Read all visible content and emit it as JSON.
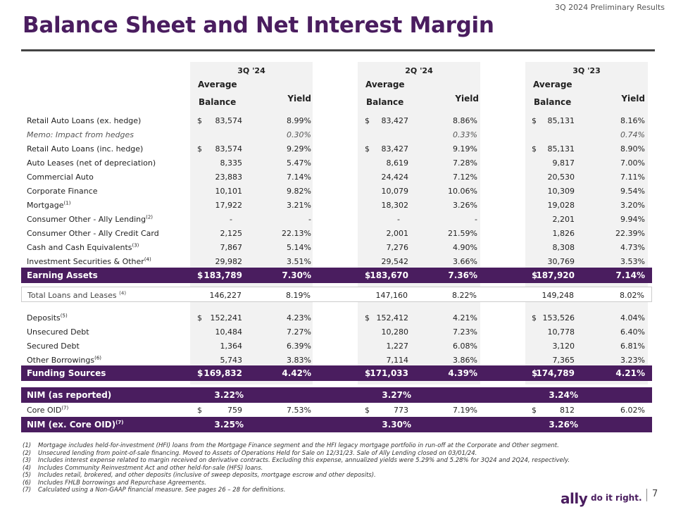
{
  "header": {
    "top_right": "3Q 2024 Preliminary Results",
    "title": "Balance Sheet and Net Interest Margin"
  },
  "periods": [
    "3Q '24",
    "2Q '24",
    "3Q '23"
  ],
  "col_headers": {
    "average": "Average",
    "balance": "Balance",
    "yield": "Yield"
  },
  "rows": {
    "retail_ex": {
      "label": "Retail Auto Loans (ex. hedge)",
      "sup": "",
      "vals": [
        "$",
        "83,574",
        "8.99%",
        "$",
        "83,427",
        "8.86%",
        "$",
        "85,131",
        "8.16%"
      ]
    },
    "memo": {
      "label": "Memo: Impact from hedges",
      "sup": "",
      "vals": [
        "",
        "",
        "0.30%",
        "",
        "",
        "0.33%",
        "",
        "",
        "0.74%"
      ]
    },
    "retail_inc": {
      "label": "Retail Auto Loans (inc. hedge)",
      "sup": "",
      "vals": [
        "$",
        "83,574",
        "9.29%",
        "$",
        "83,427",
        "9.19%",
        "$",
        "85,131",
        "8.90%"
      ]
    },
    "auto_leases": {
      "label": "Auto Leases (net of depreciation)",
      "sup": "",
      "vals": [
        "",
        "8,335",
        "5.47%",
        "",
        "8,619",
        "7.28%",
        "",
        "9,817",
        "7.00%"
      ]
    },
    "commercial_auto": {
      "label": "Commercial Auto",
      "sup": "",
      "vals": [
        "",
        "23,883",
        "7.14%",
        "",
        "24,424",
        "7.12%",
        "",
        "20,530",
        "7.11%"
      ]
    },
    "corporate_finance": {
      "label": "Corporate Finance",
      "sup": "",
      "vals": [
        "",
        "10,101",
        "9.82%",
        "",
        "10,079",
        "10.06%",
        "",
        "10,309",
        "9.54%"
      ]
    },
    "mortgage": {
      "label": "Mortgage",
      "sup": "(1)",
      "vals": [
        "",
        "17,922",
        "3.21%",
        "",
        "18,302",
        "3.26%",
        "",
        "19,028",
        "3.20%"
      ]
    },
    "consumer_lending": {
      "label": "Consumer Other - Ally Lending",
      "sup": "(2)",
      "vals": [
        "",
        "-",
        "-",
        "",
        "-",
        "-",
        "",
        "2,201",
        "9.94%"
      ]
    },
    "consumer_card": {
      "label": "Consumer Other - Ally Credit Card",
      "sup": "",
      "vals": [
        "",
        "2,125",
        "22.13%",
        "",
        "2,001",
        "21.59%",
        "",
        "1,826",
        "22.39%"
      ]
    },
    "cash": {
      "label": "Cash and Cash Equivalents",
      "sup": "(3)",
      "vals": [
        "",
        "7,867",
        "5.14%",
        "",
        "7,276",
        "4.90%",
        "",
        "8,308",
        "4.73%"
      ]
    },
    "investment": {
      "label": "Investment Securities & Other",
      "sup": "(4)",
      "vals": [
        "",
        "29,982",
        "3.51%",
        "",
        "29,542",
        "3.66%",
        "",
        "30,769",
        "3.53%"
      ]
    },
    "earning_assets": {
      "label": "Earning Assets",
      "sup": "",
      "vals": [
        "$",
        "183,789",
        "7.30%",
        "$",
        "183,670",
        "7.36%",
        "$",
        "187,920",
        "7.14%"
      ]
    },
    "total_loans": {
      "label": "Total Loans and Leases ",
      "sup": "(4)",
      "vals": [
        "",
        "146,227",
        "8.19%",
        "",
        "147,160",
        "8.22%",
        "",
        "149,248",
        "8.02%"
      ]
    },
    "deposits": {
      "label": "Deposits",
      "sup": "(5)",
      "vals": [
        "$",
        "152,241",
        "4.23%",
        "$",
        "152,412",
        "4.21%",
        "$",
        "153,526",
        "4.04%"
      ]
    },
    "unsecured": {
      "label": "Unsecured Debt",
      "sup": "",
      "vals": [
        "",
        "10,484",
        "7.27%",
        "",
        "10,280",
        "7.23%",
        "",
        "10,778",
        "6.40%"
      ]
    },
    "secured": {
      "label": "Secured Debt",
      "sup": "",
      "vals": [
        "",
        "1,364",
        "6.39%",
        "",
        "1,227",
        "6.08%",
        "",
        "3,120",
        "6.81%"
      ]
    },
    "other_borrowings": {
      "label": "Other Borrowings",
      "sup": "(6)",
      "vals": [
        "",
        "5,743",
        "3.83%",
        "",
        "7,114",
        "3.86%",
        "",
        "7,365",
        "3.23%"
      ]
    },
    "funding": {
      "label": "Funding Sources",
      "sup": "",
      "vals": [
        "$",
        "169,832",
        "4.42%",
        "$",
        "171,033",
        "4.39%",
        "$",
        "174,789",
        "4.21%"
      ]
    },
    "nim": {
      "label": "NIM (as reported)",
      "sup": "",
      "vals": [
        "3.22%",
        "3.27%",
        "3.24%"
      ]
    },
    "core_oid": {
      "label": "Core OID",
      "sup": "(7)",
      "vals": [
        "$",
        "759",
        "7.53%",
        "$",
        "773",
        "7.19%",
        "$",
        "812",
        "6.02%"
      ]
    },
    "nim_ex": {
      "label": "NIM (ex. Core OID)",
      "sup": "(7)",
      "vals": [
        "3.25%",
        "3.30%",
        "3.26%"
      ]
    }
  },
  "footnotes": [
    {
      "num": "(1)",
      "text": "Mortgage includes held-for-investment (HFI) loans from the Mortgage Finance segment and the HFI legacy mortgage portfolio in run-off at the Corporate and Other segment."
    },
    {
      "num": "(2)",
      "text": "Unsecured lending from point-of-sale financing. Moved to Assets of Operations Held for Sale on 12/31/23. Sale of Ally Lending closed on 03/01/24."
    },
    {
      "num": "(3)",
      "text": "Includes interest expense related to margin received on derivative contracts. Excluding this expense, annualized yields were 5.29% and 5.28% for 3Q24 and 2Q24, respectively."
    },
    {
      "num": "(4)",
      "text": "Includes Community Reinvestment Act and other held-for-sale (HFS) loans."
    },
    {
      "num": "(5)",
      "text": "Includes retail, brokered, and other deposits (inclusive of sweep deposits, mortgage escrow and other deposits)."
    },
    {
      "num": "(6)",
      "text": "Includes FHLB borrowings and Repurchase Agreements."
    },
    {
      "num": "(7)",
      "text": "Calculated using a Non-GAAP financial measure. See pages 26 – 28 for definitions."
    }
  ],
  "footer": {
    "brand": "ally",
    "tagline": "do it right.",
    "page": "7"
  }
}
